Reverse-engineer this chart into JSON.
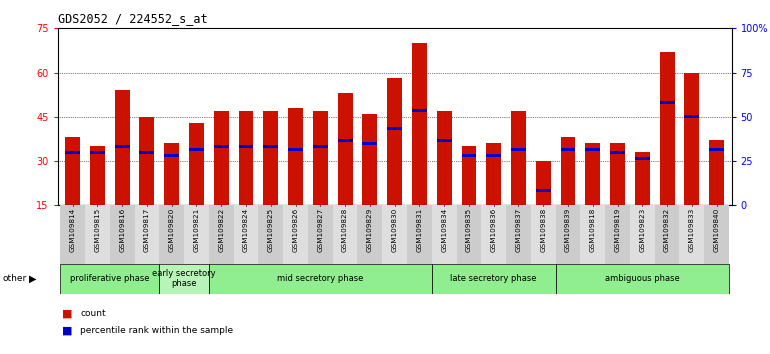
{
  "title": "GDS2052 / 224552_s_at",
  "samples": [
    "GSM109814",
    "GSM109815",
    "GSM109816",
    "GSM109817",
    "GSM109820",
    "GSM109821",
    "GSM109822",
    "GSM109824",
    "GSM109825",
    "GSM109826",
    "GSM109827",
    "GSM109828",
    "GSM109829",
    "GSM109830",
    "GSM109831",
    "GSM109834",
    "GSM109835",
    "GSM109836",
    "GSM109837",
    "GSM109838",
    "GSM109839",
    "GSM109818",
    "GSM109819",
    "GSM109823",
    "GSM109832",
    "GSM109833",
    "GSM109840"
  ],
  "count_values": [
    38,
    35,
    54,
    45,
    36,
    43,
    47,
    47,
    47,
    48,
    47,
    53,
    46,
    58,
    70,
    47,
    35,
    36,
    47,
    30,
    38,
    36,
    36,
    33,
    67,
    60,
    37
  ],
  "percentile_values": [
    33,
    33,
    35,
    33,
    32,
    34,
    35,
    35,
    35,
    34,
    35,
    37,
    36,
    41,
    47,
    37,
    32,
    32,
    34,
    20,
    34,
    34,
    33,
    31,
    50,
    45,
    34
  ],
  "phases": [
    {
      "label": "proliferative phase",
      "start": 0,
      "end": 4,
      "color": "#90EE90"
    },
    {
      "label": "early secretory\nphase",
      "start": 4,
      "end": 6,
      "color": "#b8f4b8"
    },
    {
      "label": "mid secretory phase",
      "start": 6,
      "end": 15,
      "color": "#90EE90"
    },
    {
      "label": "late secretory phase",
      "start": 15,
      "end": 20,
      "color": "#90EE90"
    },
    {
      "label": "ambiguous phase",
      "start": 20,
      "end": 27,
      "color": "#90EE90"
    }
  ],
  "ylim_left": [
    15,
    75
  ],
  "ylim_right": [
    0,
    100
  ],
  "yticks_left": [
    15,
    30,
    45,
    60,
    75
  ],
  "yticks_right": [
    0,
    25,
    50,
    75,
    100
  ],
  "bar_color": "#CC1100",
  "percentile_color": "#0000CC",
  "background_color": "#ffffff",
  "other_label": "other"
}
